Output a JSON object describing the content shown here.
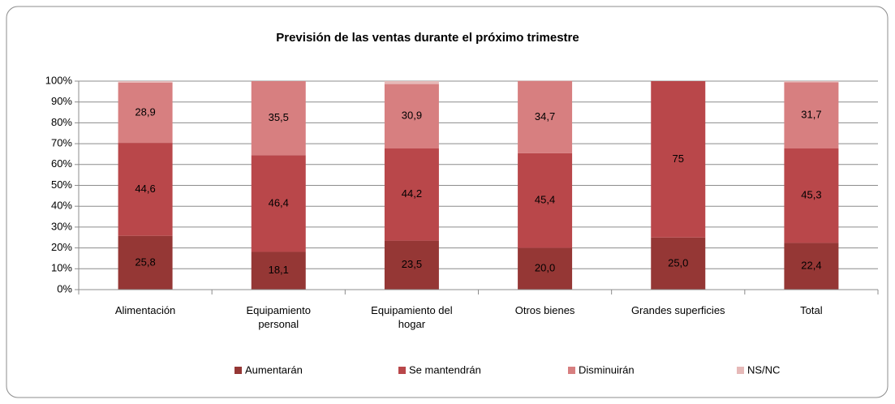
{
  "chart_data": {
    "type": "stacked_bar",
    "title": "Previsión de las ventas durante el próximo trimestre",
    "categories": [
      "Alimentación",
      "Equipamiento personal",
      "Equipamiento del hogar",
      "Otros bienes",
      "Grandes superficies",
      "Total"
    ],
    "series": [
      {
        "name": "Aumentarán",
        "color": "#953735",
        "values": [
          25.8,
          18.1,
          23.5,
          20.0,
          25.0,
          22.4
        ],
        "value_labels": [
          "25,8",
          "18,1",
          "23,5",
          "20,0",
          "25,0",
          "22,4"
        ]
      },
      {
        "name": "Se mantendrán",
        "color": "#b9474a",
        "values": [
          44.6,
          46.4,
          44.2,
          45.4,
          75,
          45.3
        ],
        "value_labels": [
          "44,6",
          "46,4",
          "44,2",
          "45,4",
          "75",
          "45,3"
        ]
      },
      {
        "name": "Disminuirán",
        "color": "#d77f80",
        "values": [
          28.9,
          35.5,
          30.9,
          34.7,
          null,
          31.7
        ],
        "value_labels": [
          "28,9",
          "35,5",
          "30,9",
          "34,7",
          null,
          "31,7"
        ]
      },
      {
        "name": "NS/NC",
        "color": "#e6b9b8",
        "values": [
          0.7,
          0,
          1.4,
          0,
          0,
          0.6
        ]
      }
    ],
    "ylim": [
      0,
      100
    ],
    "yticks": [
      {
        "value": 0,
        "label": "0%"
      },
      {
        "value": 10,
        "label": "10%"
      },
      {
        "value": 20,
        "label": "20%"
      },
      {
        "value": 30,
        "label": "30%"
      },
      {
        "value": 40,
        "label": "40%"
      },
      {
        "value": 50,
        "label": "50%"
      },
      {
        "value": 60,
        "label": "60%"
      },
      {
        "value": 70,
        "label": "70%"
      },
      {
        "value": 80,
        "label": "80%"
      },
      {
        "value": 90,
        "label": "90%"
      },
      {
        "value": 100,
        "label": "100%"
      }
    ],
    "grid": true,
    "legend": "bottom"
  }
}
